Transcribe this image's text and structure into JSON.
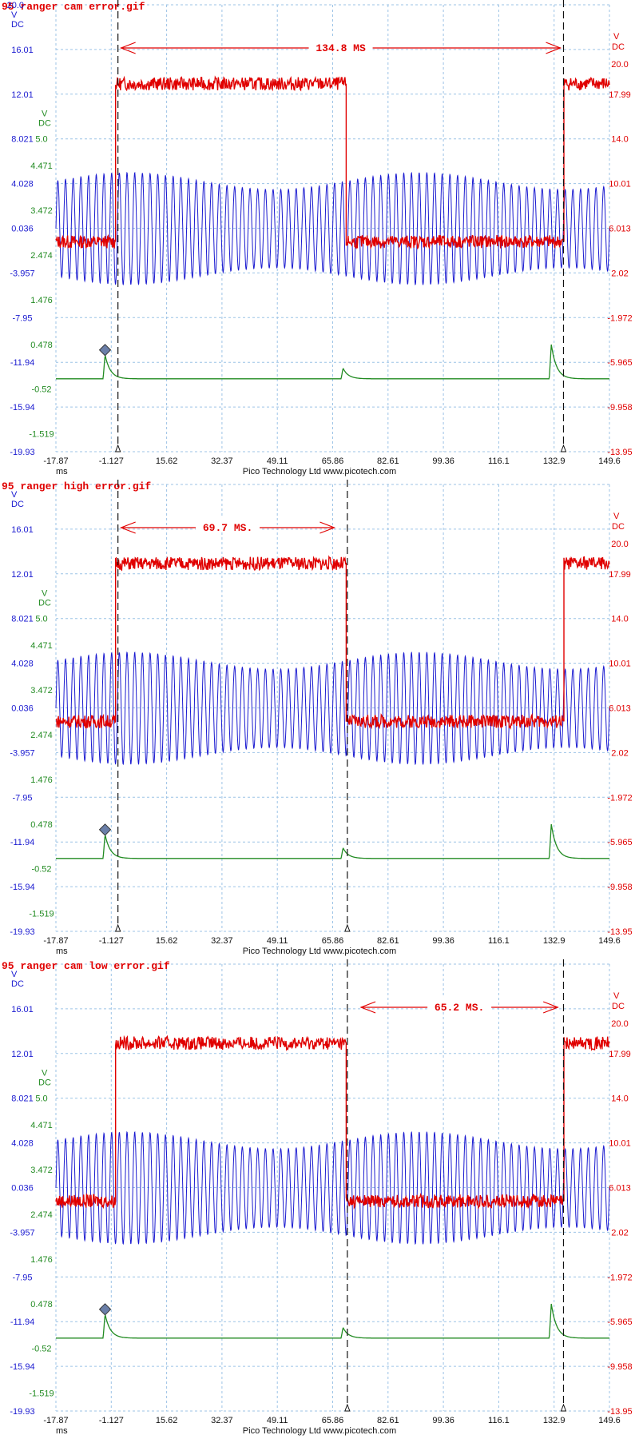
{
  "colors": {
    "blue": "#1a1ad0",
    "green": "#228b22",
    "red": "#e00000",
    "grid": "#9cc3e6",
    "cursor": "#111111"
  },
  "footer": {
    "x_unit": "ms",
    "credit": "Pico Technology Ltd   www.picotech.com"
  },
  "chart_data": [
    {
      "type": "line",
      "title": "95 ranger cam error.gif",
      "x_ticks": [
        "-17.87",
        "-1.127",
        "15.62",
        "32.37",
        "49.11",
        "65.86",
        "82.61",
        "99.36",
        "116.1",
        "132.9",
        "149.6"
      ],
      "xlim": [
        -17.87,
        149.6
      ],
      "x_unit": "ms",
      "axes": {
        "blue": {
          "unit_top": "V",
          "unit_bottom": "DC",
          "top_value": "20.0",
          "ticks": [
            "16.01",
            "12.01",
            "8.021",
            "4.028",
            "0.036",
            "-3.957",
            "-7.95",
            "-11.94",
            "-15.94",
            "-19.93"
          ],
          "ylim": [
            -19.93,
            20.0
          ]
        },
        "green": {
          "unit_top": "V",
          "unit_bottom": "DC",
          "ticks": [
            "5.0",
            "4.471",
            "3.472",
            "2.474",
            "1.476",
            "0.478",
            "-0.52",
            "-1.519"
          ],
          "ylim": [
            -1.519,
            5.0
          ]
        },
        "red": {
          "unit_top": "V",
          "unit_bottom": "DC",
          "ticks": [
            "20.0",
            "17.99",
            "14.0",
            "10.01",
            "6.013",
            "2.02",
            "-1.972",
            "-5.965",
            "-9.958",
            "-13.95"
          ],
          "ylim": [
            -13.95,
            20.0
          ]
        }
      },
      "series": [
        {
          "color": "blue",
          "kind": "sine",
          "center": 0.0,
          "amplitude": 5.0
        },
        {
          "color": "red",
          "kind": "square",
          "high": 14.0,
          "low": 2.0,
          "high_intervals": [
            [
              0.0,
              69.8
            ],
            [
              135.7,
              149.6
            ]
          ]
        },
        {
          "color": "green",
          "kind": "pulses",
          "baseline": 0.0,
          "peaks": [
            [
              -3.0,
              0.5
            ],
            [
              69.0,
              0.22
            ],
            [
              132.0,
              0.72
            ]
          ]
        }
      ],
      "cursors": [
        0.9,
        135.7
      ],
      "trigger_marker": [
        -3.0,
        0.6
      ],
      "annotation": {
        "text": "134.8 MS",
        "from": 0.9,
        "to": 135.7
      }
    },
    {
      "type": "line",
      "title": "95 ranger high error.gif",
      "x_ticks": [
        "-17.87",
        "-1.127",
        "15.62",
        "32.37",
        "49.11",
        "65.86",
        "82.61",
        "99.36",
        "116.1",
        "132.9",
        "149.6"
      ],
      "xlim": [
        -17.87,
        149.6
      ],
      "x_unit": "ms",
      "axes": {
        "blue": {
          "unit_top": "V",
          "unit_bottom": "DC",
          "top_value": "",
          "ticks": [
            "16.01",
            "12.01",
            "8.021",
            "4.028",
            "0.036",
            "-3.957",
            "-7.95",
            "-11.94",
            "-15.94",
            "-19.93"
          ],
          "ylim": [
            -19.93,
            20.0
          ]
        },
        "green": {
          "unit_top": "V",
          "unit_bottom": "DC",
          "ticks": [
            "5.0",
            "4.471",
            "3.472",
            "2.474",
            "1.476",
            "0.478",
            "-0.52",
            "-1.519"
          ],
          "ylim": [
            -1.519,
            5.0
          ]
        },
        "red": {
          "unit_top": "V",
          "unit_bottom": "DC",
          "ticks": [
            "20.0",
            "17.99",
            "14.0",
            "10.01",
            "6.013",
            "2.02",
            "-1.972",
            "-5.965",
            "-9.958",
            "-13.95"
          ],
          "ylim": [
            -13.95,
            20.0
          ]
        }
      },
      "series": [
        {
          "color": "blue",
          "kind": "sine",
          "center": 0.0,
          "amplitude": 5.0
        },
        {
          "color": "red",
          "kind": "square",
          "high": 14.0,
          "low": 2.0,
          "high_intervals": [
            [
              0.0,
              69.8
            ],
            [
              135.7,
              149.6
            ]
          ]
        },
        {
          "color": "green",
          "kind": "pulses",
          "baseline": 0.0,
          "peaks": [
            [
              -3.0,
              0.5
            ],
            [
              69.0,
              0.22
            ],
            [
              132.0,
              0.72
            ]
          ]
        }
      ],
      "cursors": [
        0.9,
        70.3
      ],
      "trigger_marker": [
        -3.0,
        0.6
      ],
      "annotation": {
        "text": "69.7 MS.",
        "from": 0.9,
        "to": 67.3
      }
    },
    {
      "type": "line",
      "title": "95 ranger cam low error.gif",
      "x_ticks": [
        "-17.87",
        "-1.127",
        "15.62",
        "32.37",
        "49.11",
        "65.86",
        "82.61",
        "99.36",
        "116.1",
        "132.9",
        "149.6"
      ],
      "xlim": [
        -17.87,
        149.6
      ],
      "x_unit": "ms",
      "axes": {
        "blue": {
          "unit_top": "V",
          "unit_bottom": "DC",
          "top_value": "",
          "ticks": [
            "16.01",
            "12.01",
            "8.021",
            "4.028",
            "0.036",
            "-3.957",
            "-7.95",
            "-11.94",
            "-15.94",
            "-19.93"
          ],
          "ylim": [
            -19.93,
            20.0
          ]
        },
        "green": {
          "unit_top": "V",
          "unit_bottom": "DC",
          "ticks": [
            "5.0",
            "4.471",
            "3.472",
            "2.474",
            "1.476",
            "0.478",
            "-0.52",
            "-1.519"
          ],
          "ylim": [
            -1.519,
            5.0
          ]
        },
        "red": {
          "unit_top": "V",
          "unit_bottom": "DC",
          "ticks": [
            "20.0",
            "17.99",
            "14.0",
            "10.01",
            "6.013",
            "2.02",
            "-1.972",
            "-5.965",
            "-9.958",
            "-13.95"
          ],
          "ylim": [
            -13.95,
            20.0
          ]
        }
      },
      "series": [
        {
          "color": "blue",
          "kind": "sine",
          "center": 0.0,
          "amplitude": 5.0
        },
        {
          "color": "red",
          "kind": "square",
          "high": 14.0,
          "low": 2.0,
          "high_intervals": [
            [
              0.0,
              69.8
            ],
            [
              135.7,
              149.6
            ]
          ]
        },
        {
          "color": "green",
          "kind": "pulses",
          "baseline": 0.0,
          "peaks": [
            [
              -3.0,
              0.5
            ],
            [
              69.0,
              0.22
            ],
            [
              132.0,
              0.72
            ]
          ]
        }
      ],
      "cursors": [
        70.3,
        135.7
      ],
      "trigger_marker": [
        -3.0,
        0.6
      ],
      "annotation": {
        "text": "65.2 MS.",
        "from": 73.5,
        "to": 134.9
      }
    }
  ]
}
